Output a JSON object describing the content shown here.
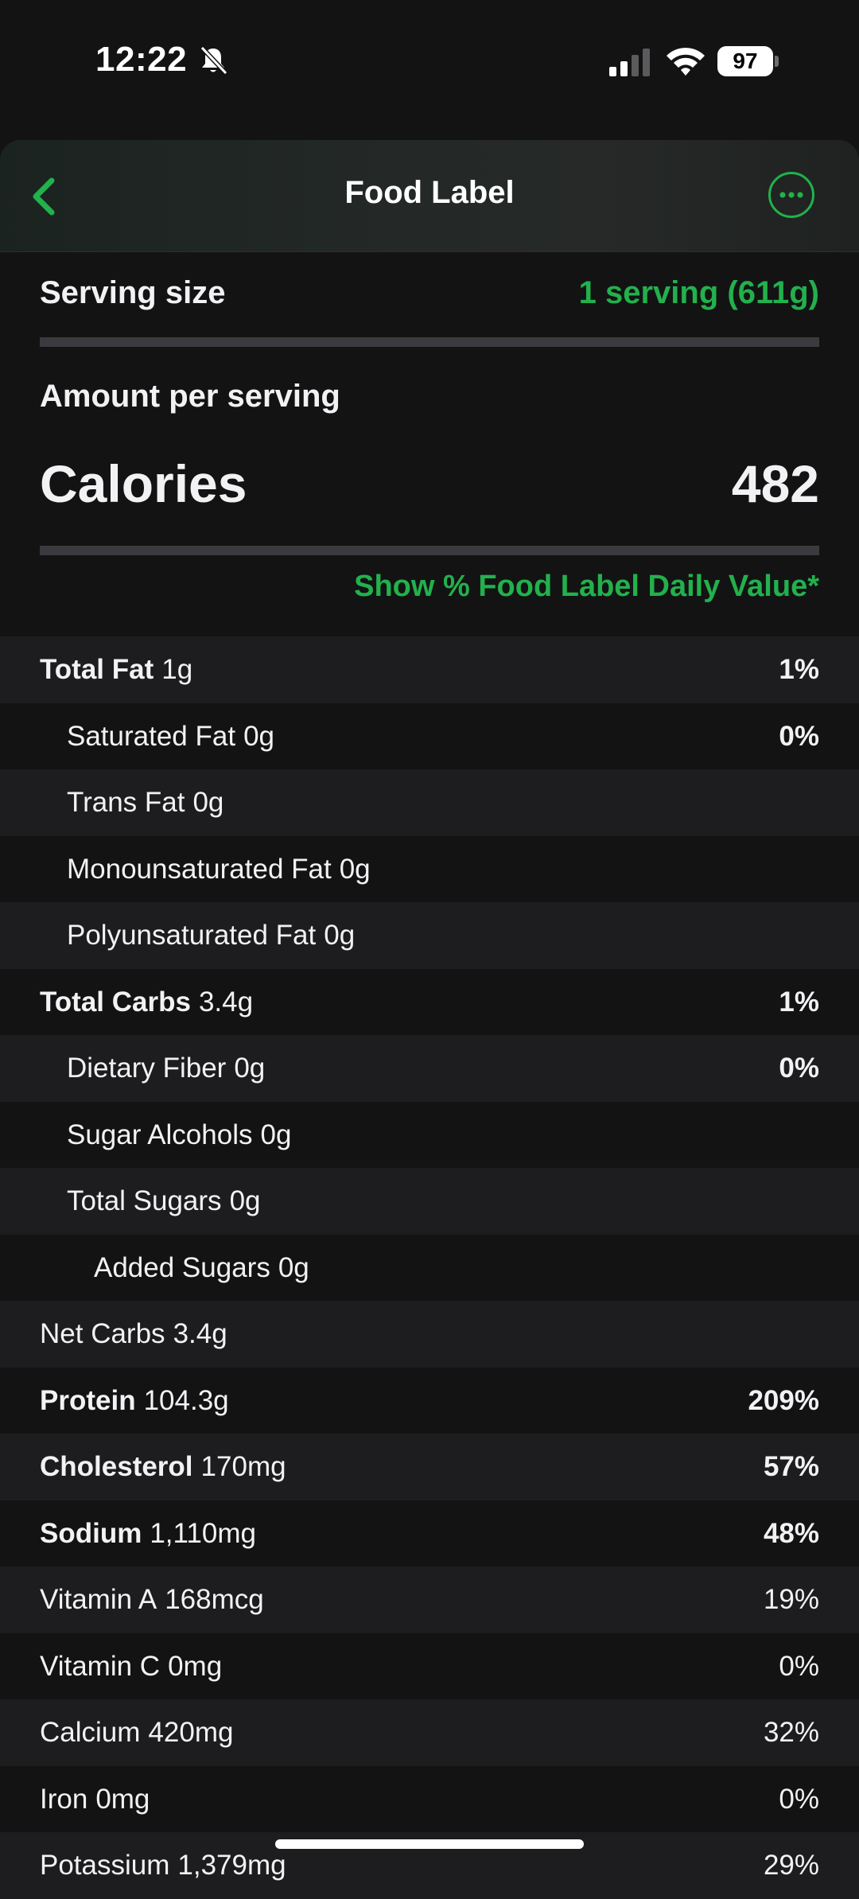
{
  "status_bar": {
    "time": "12:22",
    "battery": "97"
  },
  "header": {
    "title": "Food Label",
    "back_icon": "chevron-left-icon",
    "more_icon": "ellipsis-circle-icon"
  },
  "serving": {
    "label": "Serving size",
    "value": "1 serving (611g)"
  },
  "amount_per_serving": "Amount per serving",
  "calories": {
    "label": "Calories",
    "value": "482"
  },
  "daily_value_link": "Show % Food Label Daily Value*",
  "colors": {
    "accent": "#22b14c",
    "background": "#131314",
    "row_alt": "#1d1d1f",
    "divider": "#3b3b3f"
  },
  "nutrients": [
    {
      "name": "Total Fat",
      "amount": "1g",
      "pct": "1%",
      "bold": true,
      "indent": 0
    },
    {
      "name": "Saturated Fat",
      "amount": "0g",
      "pct": "0%",
      "bold": false,
      "indent": 1
    },
    {
      "name": "Trans Fat",
      "amount": "0g",
      "pct": "",
      "bold": false,
      "indent": 1
    },
    {
      "name": "Monounsaturated Fat",
      "amount": "0g",
      "pct": "",
      "bold": false,
      "indent": 1
    },
    {
      "name": "Polyunsaturated Fat",
      "amount": "0g",
      "pct": "",
      "bold": false,
      "indent": 1
    },
    {
      "name": "Total Carbs",
      "amount": "3.4g",
      "pct": "1%",
      "bold": true,
      "indent": 0
    },
    {
      "name": "Dietary Fiber",
      "amount": "0g",
      "pct": "0%",
      "bold": false,
      "indent": 1
    },
    {
      "name": "Sugar Alcohols",
      "amount": "0g",
      "pct": "",
      "bold": false,
      "indent": 1
    },
    {
      "name": "Total Sugars",
      "amount": "0g",
      "pct": "",
      "bold": false,
      "indent": 1
    },
    {
      "name": "Added Sugars",
      "amount": "0g",
      "pct": "",
      "bold": false,
      "indent": 2
    },
    {
      "name": "Net Carbs",
      "amount": "3.4g",
      "pct": "",
      "bold": false,
      "indent": 0
    },
    {
      "name": "Protein",
      "amount": "104.3g",
      "pct": "209%",
      "bold": true,
      "indent": 0
    },
    {
      "name": "Cholesterol",
      "amount": "170mg",
      "pct": "57%",
      "bold": true,
      "indent": 0
    },
    {
      "name": "Sodium",
      "amount": "1,110mg",
      "pct": "48%",
      "bold": true,
      "indent": 0
    },
    {
      "name": "Vitamin A",
      "amount": "168mcg",
      "pct": "19%",
      "bold": false,
      "indent": 0
    },
    {
      "name": "Vitamin C",
      "amount": "0mg",
      "pct": "0%",
      "bold": false,
      "indent": 0
    },
    {
      "name": "Calcium",
      "amount": "420mg",
      "pct": "32%",
      "bold": false,
      "indent": 0
    },
    {
      "name": "Iron",
      "amount": "0mg",
      "pct": "0%",
      "bold": false,
      "indent": 0
    },
    {
      "name": "Potassium",
      "amount": "1,379mg",
      "pct": "29%",
      "bold": false,
      "indent": 0
    }
  ]
}
